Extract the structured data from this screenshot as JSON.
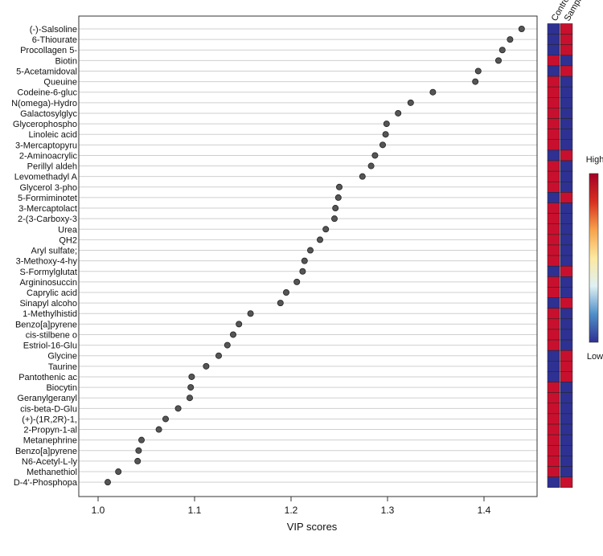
{
  "chart_data": {
    "type": "scatter",
    "title": "",
    "xlabel": "VIP scores",
    "ylabel": "",
    "xlim": [
      0.98,
      1.455
    ],
    "xticks": [
      "1.0",
      "1.1",
      "1.2",
      "1.3",
      "1.4"
    ],
    "xtick_values": [
      1.0,
      1.1,
      1.2,
      1.3,
      1.4
    ],
    "grid": "horizontal",
    "categories": [
      "(-)-Salsoline",
      "6-Thiourate",
      "Procollagen 5-",
      "Biotin",
      "5-Acetamidoval",
      "Queuine",
      "Codeine-6-gluc",
      "N(omega)-Hydro",
      "Galactosylglyc",
      "Glycerophospho",
      "Linoleic acid",
      "3-Mercaptopyru",
      "2-Aminoacrylic",
      "Perillyl aldeh",
      "Levomethadyl A",
      "Glycerol 3-pho",
      "5-Formiminotet",
      "3-Mercaptolact",
      "2-(3-Carboxy-3",
      "Urea",
      "QH2",
      "Aryl sulfate;",
      "3-Methoxy-4-hy",
      "S-Formylglutat",
      "Argininosuccin",
      "Caprylic acid",
      "Sinapyl alcoho",
      "1-Methylhistid",
      "Benzo[a]pyrene",
      "cis-stilbene o",
      "Estriol-16-Glu",
      "Glycine",
      "Taurine",
      "Pantothenic ac",
      "Biocytin",
      "Geranylgeranyl",
      "cis-beta-D-Glu",
      "(+)-(1R,2R)-1,",
      "2-Propyn-1-al",
      "Metanephrine",
      "Benzo[a]pyrene",
      "N6-Acetyl-L-ly",
      "Methanethiol",
      "D-4'-Phosphopa"
    ],
    "series": [
      {
        "values": [
          1.439,
          1.427,
          1.419,
          1.415,
          1.394,
          1.391,
          1.347,
          1.324,
          1.311,
          1.299,
          1.298,
          1.295,
          1.287,
          1.283,
          1.274,
          1.25,
          1.249,
          1.246,
          1.245,
          1.236,
          1.23,
          1.22,
          1.214,
          1.212,
          1.206,
          1.195,
          1.189,
          1.158,
          1.146,
          1.14,
          1.134,
          1.125,
          1.112,
          1.097,
          1.096,
          1.095,
          1.083,
          1.07,
          1.063,
          1.045,
          1.042,
          1.041,
          1.021,
          1.01
        ]
      }
    ],
    "heatmap": {
      "columns": [
        "Control",
        "Sample"
      ],
      "levels": [
        [
          "low",
          "high"
        ],
        [
          "low",
          "high"
        ],
        [
          "low",
          "high"
        ],
        [
          "high",
          "low"
        ],
        [
          "low",
          "high"
        ],
        [
          "high",
          "low"
        ],
        [
          "high",
          "low"
        ],
        [
          "high",
          "low"
        ],
        [
          "high",
          "low"
        ],
        [
          "high",
          "low"
        ],
        [
          "high",
          "low"
        ],
        [
          "high",
          "low"
        ],
        [
          "low",
          "high"
        ],
        [
          "high",
          "low"
        ],
        [
          "high",
          "low"
        ],
        [
          "high",
          "low"
        ],
        [
          "low",
          "high"
        ],
        [
          "high",
          "low"
        ],
        [
          "high",
          "low"
        ],
        [
          "high",
          "low"
        ],
        [
          "high",
          "low"
        ],
        [
          "high",
          "low"
        ],
        [
          "high",
          "low"
        ],
        [
          "low",
          "high"
        ],
        [
          "high",
          "low"
        ],
        [
          "high",
          "low"
        ],
        [
          "low",
          "high"
        ],
        [
          "high",
          "low"
        ],
        [
          "high",
          "low"
        ],
        [
          "high",
          "low"
        ],
        [
          "high",
          "low"
        ],
        [
          "low",
          "high"
        ],
        [
          "low",
          "high"
        ],
        [
          "low",
          "high"
        ],
        [
          "high",
          "low"
        ],
        [
          "high",
          "low"
        ],
        [
          "high",
          "low"
        ],
        [
          "high",
          "low"
        ],
        [
          "high",
          "low"
        ],
        [
          "high",
          "low"
        ],
        [
          "high",
          "low"
        ],
        [
          "high",
          "low"
        ],
        [
          "high",
          "low"
        ],
        [
          "low",
          "high"
        ]
      ],
      "colors": {
        "high": "#c8102e",
        "low": "#2e3192"
      }
    },
    "color_legend": {
      "high_label": "High",
      "low_label": "Low",
      "gradient": [
        "#2e3192",
        "#4f8fc8",
        "#dff1f4",
        "#fde9a0",
        "#f7a24b",
        "#d7301f",
        "#a50026"
      ]
    },
    "point_color": "#555555"
  }
}
